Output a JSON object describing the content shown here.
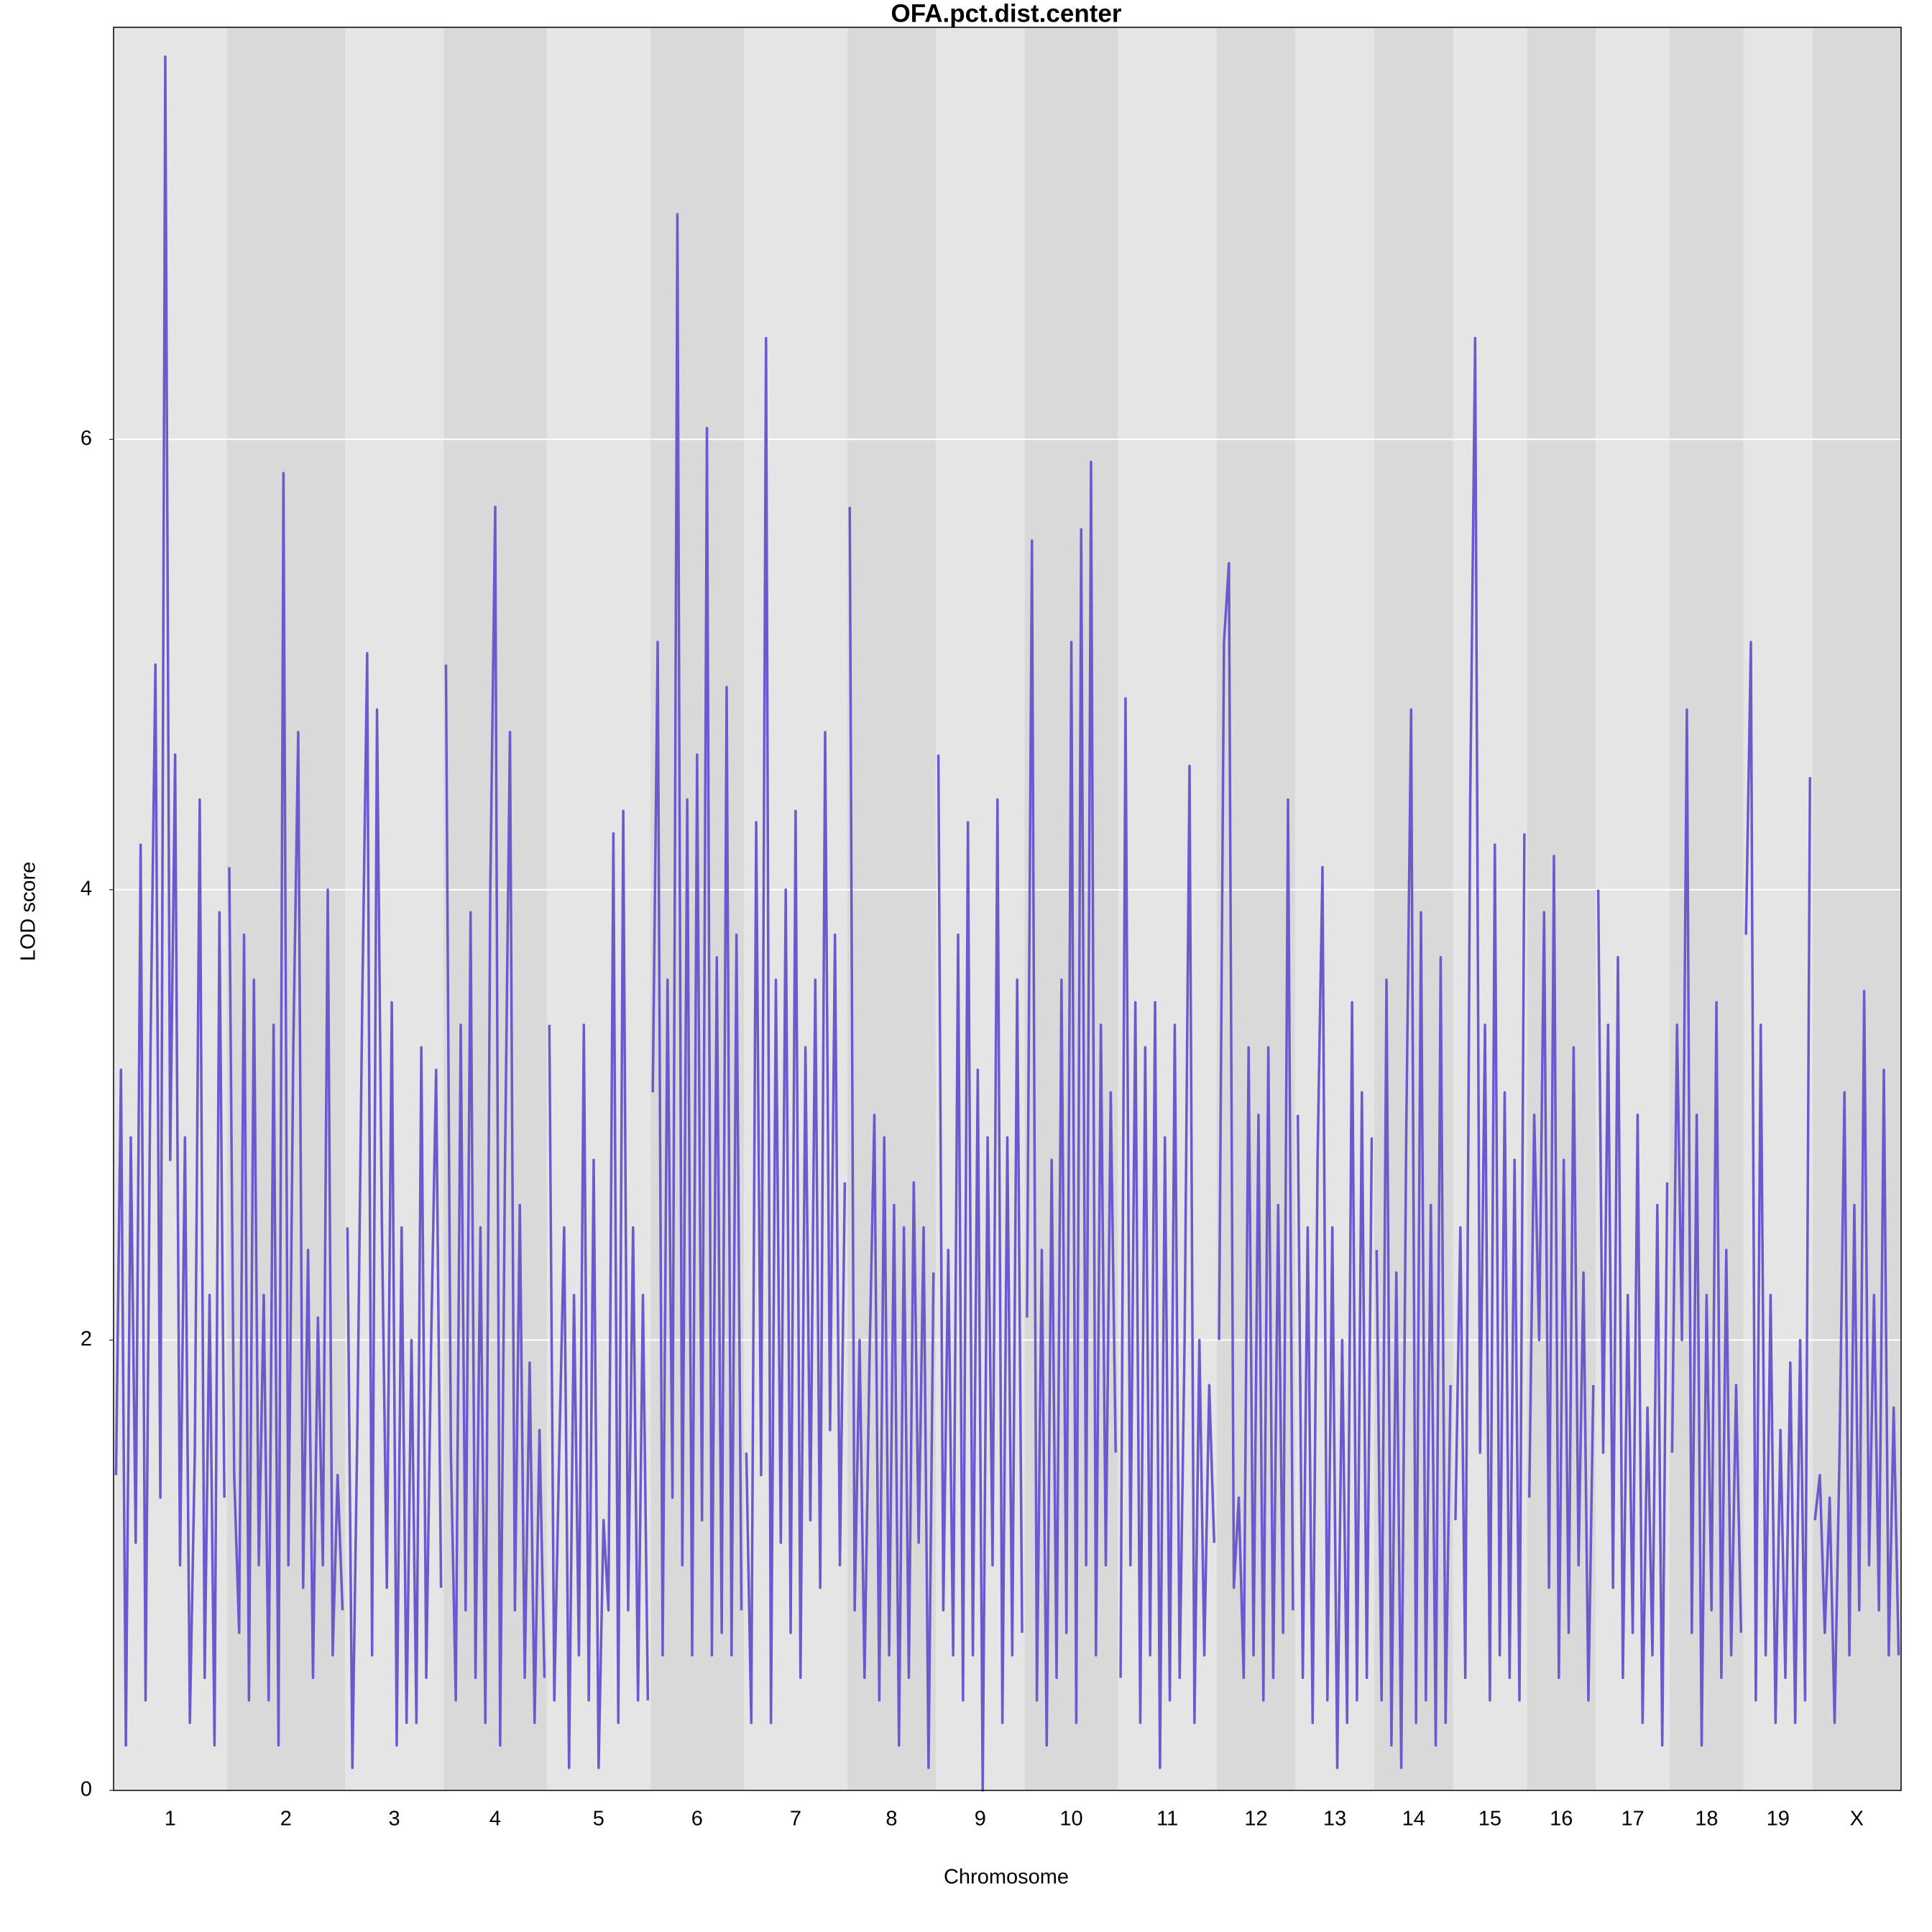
{
  "chart_data": {
    "type": "line",
    "title": "OFA.pct.dist.center",
    "xlabel": "Chromosome",
    "ylabel": "LOD score",
    "ylim": [
      0,
      7.83
    ],
    "yticks": [
      0,
      2,
      4,
      6
    ],
    "grid": true,
    "color": "#6a5acd",
    "band_colors": [
      "#e5e5e5",
      "#d9d9d9"
    ],
    "chromosomes": [
      {
        "name": "1",
        "values": [
          1.4,
          3.2,
          0.2,
          2.9,
          1.1,
          4.2,
          0.4,
          3.3,
          5.0,
          1.3,
          7.7,
          2.8,
          4.6,
          1.0,
          2.9,
          0.3,
          1.5,
          4.4,
          0.5,
          2.2,
          0.2,
          3.9,
          1.3
        ]
      },
      {
        "name": "2",
        "values": [
          4.1,
          1.4,
          0.7,
          3.8,
          0.4,
          3.6,
          1.0,
          2.2,
          0.4,
          3.4,
          0.2,
          5.85,
          1.0,
          3.3,
          4.7,
          0.9,
          2.4,
          0.5,
          2.1,
          1.0,
          4.0,
          0.6,
          1.4,
          0.8
        ]
      },
      {
        "name": "3",
        "values": [
          2.5,
          0.1,
          1.6,
          3.5,
          5.05,
          0.6,
          4.8,
          2.5,
          0.9,
          3.5,
          0.2,
          2.5,
          0.3,
          2.0,
          0.3,
          3.3,
          0.5,
          2.0,
          3.2,
          0.9
        ]
      },
      {
        "name": "4",
        "values": [
          5.0,
          1.5,
          0.4,
          3.4,
          0.8,
          3.9,
          0.5,
          2.5,
          0.3,
          4.0,
          5.7,
          0.2,
          2.8,
          4.7,
          0.8,
          2.6,
          0.5,
          1.9,
          0.3,
          1.6,
          0.5
        ]
      },
      {
        "name": "5",
        "values": [
          3.4,
          0.4,
          1.5,
          2.5,
          0.1,
          2.2,
          0.6,
          3.4,
          0.4,
          2.8,
          0.1,
          1.2,
          0.8,
          4.25,
          0.3,
          4.35,
          0.8,
          2.5,
          0.4,
          2.2,
          0.4
        ]
      },
      {
        "name": "6",
        "values": [
          3.1,
          5.1,
          0.6,
          3.6,
          1.3,
          7.0,
          1.0,
          4.4,
          0.6,
          4.6,
          1.2,
          6.05,
          0.6,
          3.7,
          0.7,
          4.9,
          0.6,
          3.8,
          0.8
        ]
      },
      {
        "name": "7",
        "values": [
          1.5,
          0.3,
          4.3,
          1.4,
          6.45,
          0.3,
          3.6,
          1.1,
          4.0,
          0.7,
          4.35,
          0.5,
          3.3,
          1.2,
          3.6,
          0.9,
          4.7,
          1.6,
          3.8,
          1.0,
          2.7
        ]
      },
      {
        "name": "8",
        "values": [
          5.7,
          0.8,
          2.0,
          0.5,
          1.9,
          3.0,
          0.4,
          2.9,
          0.6,
          2.6,
          0.2,
          2.5,
          0.5,
          2.7,
          1.1,
          2.5,
          0.1,
          2.3
        ]
      },
      {
        "name": "9",
        "values": [
          4.6,
          0.8,
          2.4,
          0.6,
          3.8,
          0.4,
          4.3,
          0.6,
          3.2,
          0.0,
          2.9,
          1.0,
          4.4,
          0.3,
          2.9,
          0.6,
          3.6,
          0.7
        ]
      },
      {
        "name": "10",
        "values": [
          2.1,
          5.55,
          0.4,
          2.4,
          0.2,
          2.8,
          0.5,
          3.6,
          0.7,
          5.1,
          0.3,
          5.6,
          1.0,
          5.9,
          0.6,
          3.4,
          1.0,
          3.1,
          1.5
        ]
      },
      {
        "name": "11",
        "values": [
          0.5,
          4.85,
          1.0,
          3.5,
          0.3,
          3.3,
          0.6,
          3.5,
          0.1,
          2.9,
          0.4,
          3.4,
          0.5,
          2.0,
          4.55,
          0.3,
          2.0,
          0.6,
          1.8,
          1.1
        ]
      },
      {
        "name": "12",
        "values": [
          2.0,
          5.1,
          5.45,
          0.9,
          1.3,
          0.5,
          3.3,
          0.6,
          3.0,
          0.4,
          3.3,
          0.5,
          2.6,
          0.7,
          4.4,
          0.8
        ]
      },
      {
        "name": "13",
        "values": [
          3.0,
          0.5,
          2.5,
          0.3,
          2.8,
          4.1,
          0.4,
          2.5,
          0.1,
          2.0,
          0.3,
          3.5,
          0.4,
          3.1,
          0.5,
          2.9
        ]
      },
      {
        "name": "14",
        "values": [
          2.4,
          0.4,
          3.6,
          0.2,
          2.3,
          0.1,
          2.9,
          4.8,
          0.3,
          3.9,
          0.4,
          2.6,
          0.2,
          3.7,
          0.3,
          1.8
        ]
      },
      {
        "name": "15",
        "values": [
          1.2,
          2.5,
          0.5,
          4.4,
          6.45,
          1.5,
          3.4,
          0.4,
          4.2,
          0.6,
          3.1,
          0.5,
          2.8,
          0.4,
          4.25
        ]
      },
      {
        "name": "16",
        "values": [
          1.3,
          3.0,
          2.0,
          3.9,
          0.9,
          4.15,
          0.5,
          2.8,
          0.7,
          3.3,
          1.0,
          2.3,
          0.4,
          1.8
        ]
      },
      {
        "name": "17",
        "values": [
          4.0,
          1.5,
          3.4,
          0.9,
          3.7,
          0.5,
          2.2,
          0.7,
          3.0,
          0.3,
          1.7,
          0.6,
          2.6,
          0.2,
          2.7
        ]
      },
      {
        "name": "18",
        "values": [
          1.5,
          3.4,
          2.0,
          4.8,
          0.7,
          3.0,
          0.2,
          2.2,
          0.8,
          3.5,
          0.5,
          2.4,
          0.6,
          1.8,
          0.7
        ]
      },
      {
        "name": "19",
        "values": [
          3.8,
          5.1,
          0.4,
          3.4,
          0.6,
          2.2,
          0.3,
          1.6,
          0.5,
          1.9,
          0.3,
          2.0,
          0.4,
          4.5
        ]
      },
      {
        "name": "X",
        "values": [
          1.2,
          1.4,
          0.7,
          1.3,
          0.3,
          1.5,
          3.1,
          0.6,
          2.6,
          0.8,
          3.55,
          1.0,
          2.2,
          0.8,
          3.2,
          0.6,
          1.7,
          0.6
        ]
      }
    ]
  }
}
